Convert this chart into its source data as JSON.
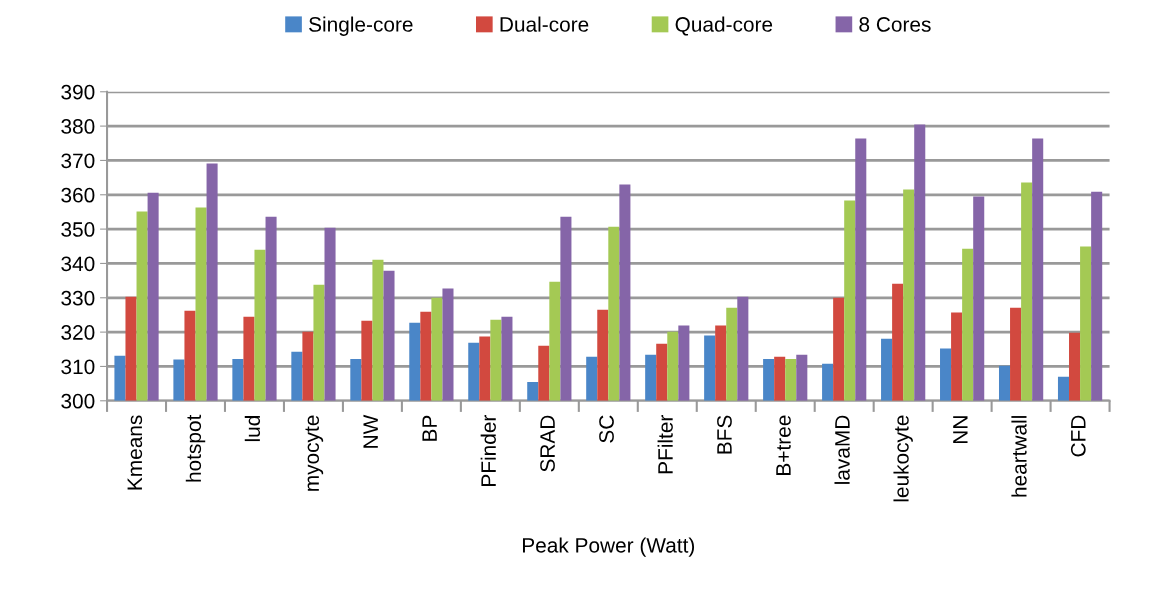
{
  "chart_data": {
    "type": "bar",
    "xlabel": "Peak Power (Watt)",
    "categories": [
      "Kmeans",
      "hotspot",
      "lud",
      "myocyte",
      "NW",
      "BP",
      "PFinder",
      "SRAD",
      "SC",
      "PFilter",
      "BFS",
      "B+tree",
      "lavaMD",
      "leukocyte",
      "NN",
      "heartwall",
      "CFD"
    ],
    "series": [
      {
        "name": "Single-core",
        "color": "#4a86c8",
        "values": [
          313.1,
          312.0,
          312.2,
          314.3,
          312.2,
          322.7,
          316.9,
          305.5,
          312.8,
          313.4,
          319.0,
          312.2,
          310.8,
          318.1,
          315.2,
          310.2,
          307.0
        ]
      },
      {
        "name": "Dual-core",
        "color": "#d2493f",
        "values": [
          330.3,
          326.2,
          324.5,
          320.1,
          323.3,
          325.9,
          318.7,
          316.0,
          326.5,
          316.6,
          321.9,
          312.8,
          330.0,
          334.1,
          325.7,
          327.1,
          319.8
        ]
      },
      {
        "name": "Quad-core",
        "color": "#a4c954",
        "values": [
          355.1,
          356.3,
          344.0,
          333.8,
          341.1,
          330.0,
          323.6,
          334.7,
          350.7,
          320.1,
          327.1,
          312.2,
          358.3,
          361.5,
          344.3,
          363.6,
          344.9
        ]
      },
      {
        "name": "8 Cores",
        "color": "#8565a8",
        "values": [
          360.6,
          369.1,
          353.6,
          350.4,
          337.9,
          332.7,
          324.5,
          353.6,
          363.0,
          321.9,
          330.3,
          313.4,
          376.4,
          380.5,
          359.5,
          376.4,
          360.9
        ]
      }
    ],
    "ylim": [
      300,
      390
    ],
    "yticks": [
      300,
      310,
      320,
      330,
      340,
      350,
      360,
      370,
      380,
      390
    ],
    "grid": "y",
    "legend": "top"
  }
}
